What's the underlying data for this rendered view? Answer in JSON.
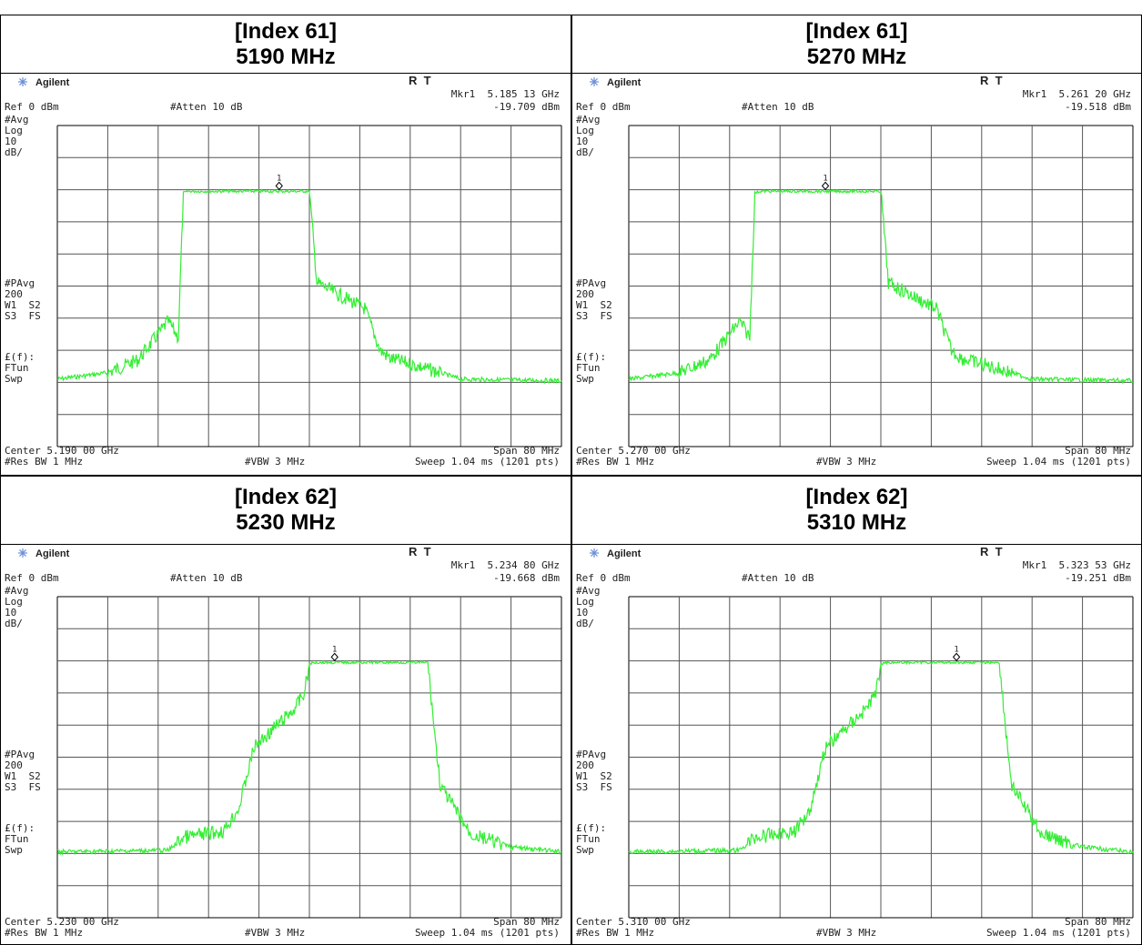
{
  "panels": [
    {
      "heading": [
        "[Index 61]",
        "5190 MHz"
      ],
      "screen": {
        "brand": "Agilent",
        "mode": "R  T",
        "marker_freq": "Mkr1  5.185 13 GHz",
        "marker_level": "-19.709 dBm",
        "ref": "Ref 0 dBm",
        "atten": "#Atten 10 dB",
        "labels_top": [
          "#Avg",
          "Log",
          "10",
          "dB/"
        ],
        "labels_mid": [
          "#PAvg",
          "200",
          "W1  S2",
          "S3  FS"
        ],
        "labels_low": [
          "£(f):",
          "FTun",
          "Swp"
        ],
        "marker_label": "1",
        "center": "Center 5.190 00 GHz",
        "span": "Span 80 MHz",
        "rbw": "#Res BW 1 MHz",
        "vbw": "#VBW 3 MHz",
        "sweep": "Sweep 1.04 ms (1201 pts)"
      }
    },
    {
      "heading": [
        "[Index 61]",
        "5270 MHz"
      ],
      "screen": {
        "brand": "Agilent",
        "mode": "R  T",
        "marker_freq": "Mkr1  5.261 20 GHz",
        "marker_level": "-19.518 dBm",
        "ref": "Ref 0 dBm",
        "atten": "#Atten 10 dB",
        "labels_top": [
          "#Avg",
          "Log",
          "10",
          "dB/"
        ],
        "labels_mid": [
          "#PAvg",
          "200",
          "W1  S2",
          "S3  FS"
        ],
        "labels_low": [
          "£(f):",
          "FTun",
          "Swp"
        ],
        "marker_label": "1",
        "center": "Center 5.270 00 GHz",
        "span": "Span 80 MHz",
        "rbw": "#Res BW 1 MHz",
        "vbw": "#VBW 3 MHz",
        "sweep": "Sweep 1.04 ms (1201 pts)"
      }
    },
    {
      "heading": [
        "[Index 62]",
        "5230 MHz"
      ],
      "screen": {
        "brand": "Agilent",
        "mode": "R  T",
        "marker_freq": "Mkr1  5.234 80 GHz",
        "marker_level": "-19.668 dBm",
        "ref": "Ref 0 dBm",
        "atten": "#Atten 10 dB",
        "labels_top": [
          "#Avg",
          "Log",
          "10",
          "dB/"
        ],
        "labels_mid": [
          "#PAvg",
          "200",
          "W1  S2",
          "S3  FS"
        ],
        "labels_low": [
          "£(f):",
          "FTun",
          "Swp"
        ],
        "marker_label": "1",
        "center": "Center 5.230 00 GHz",
        "span": "Span 80 MHz",
        "rbw": "#Res BW 1 MHz",
        "vbw": "#VBW 3 MHz",
        "sweep": "Sweep 1.04 ms (1201 pts)"
      }
    },
    {
      "heading": [
        "[Index 62]",
        "5310 MHz"
      ],
      "screen": {
        "brand": "Agilent",
        "mode": "R  T",
        "marker_freq": "Mkr1  5.323 53 GHz",
        "marker_level": "-19.251 dBm",
        "ref": "Ref 0 dBm",
        "atten": "#Atten 10 dB",
        "labels_top": [
          "#Avg",
          "Log",
          "10",
          "dB/"
        ],
        "labels_mid": [
          "#PAvg",
          "200",
          "W1  S2",
          "S3  FS"
        ],
        "labels_low": [
          "£(f):",
          "FTun",
          "Swp"
        ],
        "marker_label": "1",
        "center": "Center 5.310 00 GHz",
        "span": "Span 80 MHz",
        "rbw": "#Res BW 1 MHz",
        "vbw": "#VBW 3 MHz",
        "sweep": "Sweep 1.04 ms (1201 pts)"
      }
    }
  ]
}
